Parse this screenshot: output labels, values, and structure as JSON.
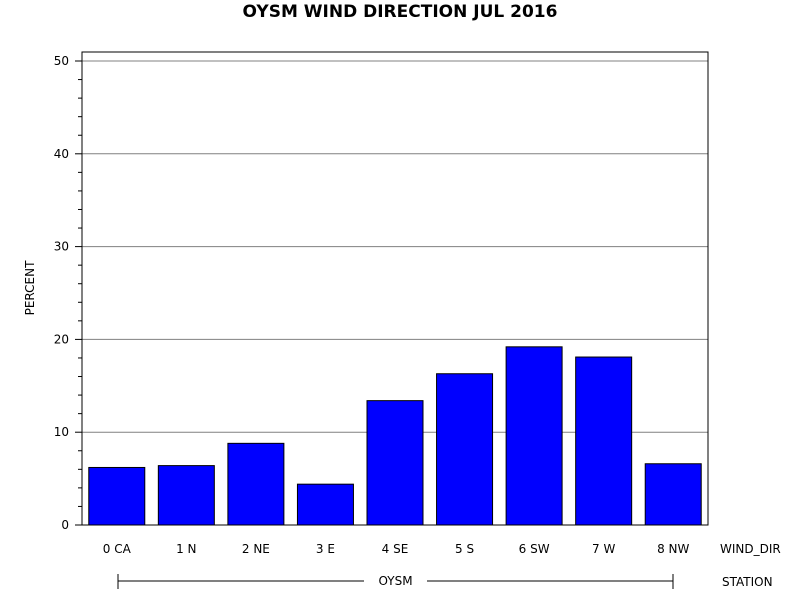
{
  "chart_data": {
    "type": "bar",
    "title": "OYSM WIND DIRECTION JUL 2016",
    "ylabel": "PERCENT",
    "xlabel": "WIND_DIR",
    "group_label": "STATION",
    "group_value": "OYSM",
    "categories": [
      "0 CA",
      "1 N",
      "2 NE",
      "3 E",
      "4 SE",
      "5 S",
      "6 SW",
      "7 W",
      "8 NW"
    ],
    "values": [
      6.2,
      6.4,
      8.8,
      4.4,
      13.4,
      16.3,
      19.2,
      18.1,
      6.6
    ],
    "ylim": [
      0,
      50
    ],
    "yticks": [
      0,
      10,
      20,
      30,
      40,
      50
    ],
    "grid": true,
    "bar_color": "#0000ff"
  }
}
